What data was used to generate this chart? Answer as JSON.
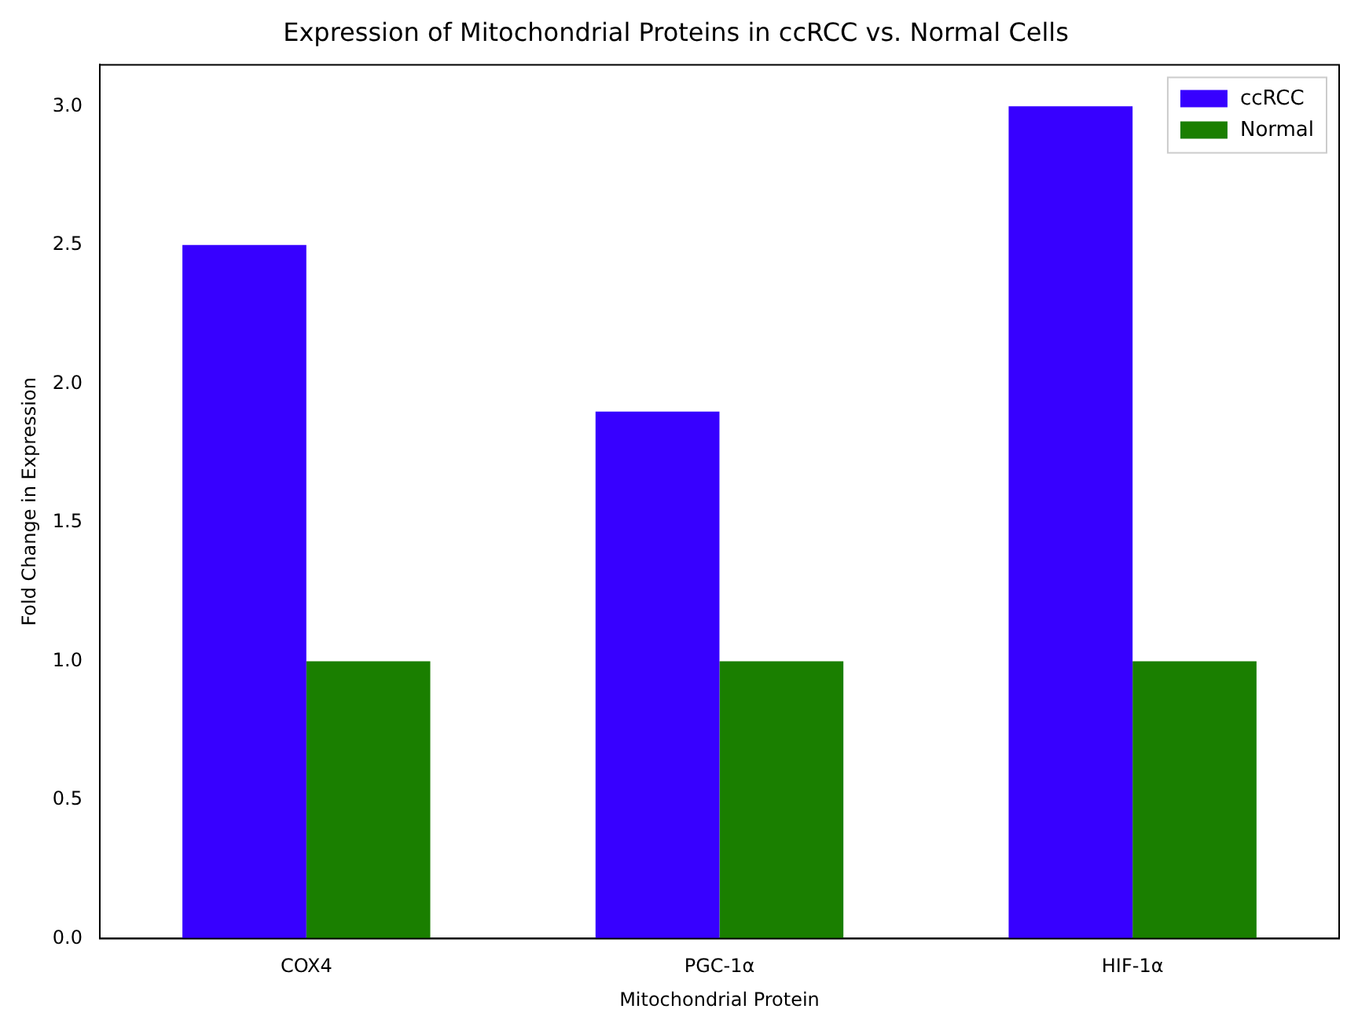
{
  "chart_data": {
    "type": "bar",
    "title": "Expression of Mitochondrial Proteins in ccRCC vs. Normal Cells",
    "xlabel": "Mitochondrial Protein",
    "ylabel": "Fold Change in Expression",
    "categories": [
      "COX4",
      "PGC-1α",
      "HIF-1α"
    ],
    "series": [
      {
        "name": "ccRCC",
        "color": "#3700ff",
        "values": [
          2.5,
          1.9,
          3.0
        ]
      },
      {
        "name": "Normal",
        "color": "#1a7f00",
        "values": [
          1.0,
          1.0,
          1.0
        ]
      }
    ],
    "ylim": [
      0,
      3.15
    ],
    "yticks": [
      {
        "value": 0,
        "label": "0.0"
      },
      {
        "value": 0.5,
        "label": "0.5"
      },
      {
        "value": 1,
        "label": "1.0"
      },
      {
        "value": 1.5,
        "label": "1.5"
      },
      {
        "value": 2,
        "label": "2.0"
      },
      {
        "value": 2.5,
        "label": "2.5"
      },
      {
        "value": 3,
        "label": "3.0"
      }
    ],
    "grid": false,
    "legend": "top right"
  }
}
